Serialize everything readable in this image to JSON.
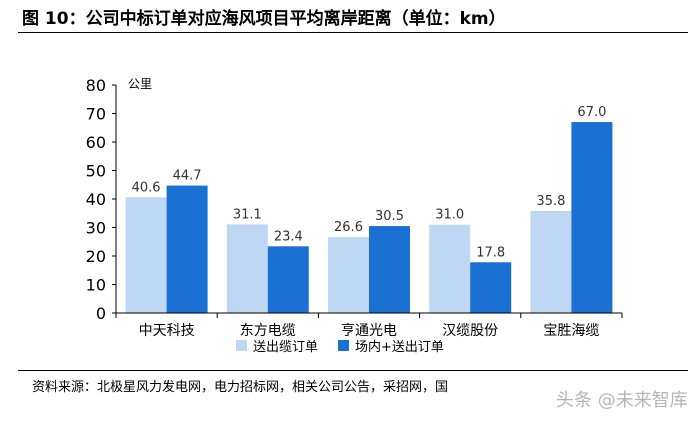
{
  "header": {
    "title": "图 10：公司中标订单对应海风项目平均离岸距离（单位：km）"
  },
  "footer": {
    "source": "资料来源：北极星风力发电网，电力招标网，相关公司公告，采招网，国",
    "watermark": "头条 @未来智库"
  },
  "colors": {
    "series1": "#bdd7f5",
    "series2": "#1b71d3"
  },
  "chart_data": {
    "type": "bar",
    "title": "",
    "unit_label": "公里",
    "categories": [
      "中天科技",
      "东方电缆",
      "亨通光电",
      "汉缆股份",
      "宝胜海缆"
    ],
    "series": [
      {
        "name": "送出缆订单",
        "values": [
          40.6,
          31.1,
          26.6,
          31.0,
          35.8
        ]
      },
      {
        "name": "场内+送出订单",
        "values": [
          44.7,
          23.4,
          30.5,
          17.8,
          67.0
        ]
      }
    ],
    "ylim": [
      0,
      80
    ],
    "yticks": [
      0,
      10,
      20,
      30,
      40,
      50,
      60,
      70,
      80
    ],
    "value_labels": [
      [
        "40.6",
        "31.1",
        "26.6",
        "31.0",
        "35.8"
      ],
      [
        "44.7",
        "23.4",
        "30.5",
        "17.8",
        "67.0"
      ]
    ],
    "grid": false,
    "legend_position": "bottom"
  }
}
